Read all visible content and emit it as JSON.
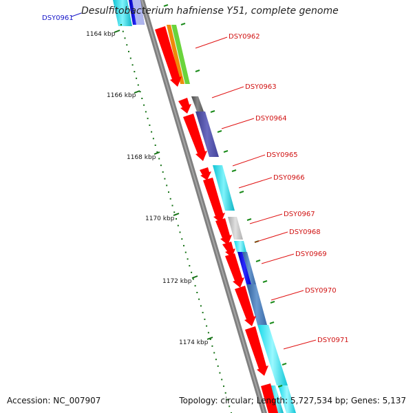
{
  "map": {
    "title": "Desulfitobacterium hafniense Y51, complete genome",
    "accession": "Accession: NC_007907",
    "topology_summary": "Topology: circular; Length: 5,727,534 bp; Genes: 5,137"
  },
  "ruler": {
    "labels": [
      "1164 kbp",
      "1166 kbp",
      "1168 kbp",
      "1170 kbp",
      "1172 kbp",
      "1174 kbp"
    ]
  },
  "gene_labels": [
    {
      "text": "DSY0961",
      "color": "#1515c8"
    },
    {
      "text": "DSY0962",
      "color": "#d01010"
    },
    {
      "text": "DSY0963",
      "color": "#d01010"
    },
    {
      "text": "DSY0964",
      "color": "#d01010"
    },
    {
      "text": "DSY0965",
      "color": "#d01010"
    },
    {
      "text": "DSY0966",
      "color": "#d01010"
    },
    {
      "text": "DSY0967",
      "color": "#d01010"
    },
    {
      "text": "DSY0968",
      "color": "#d01010"
    },
    {
      "text": "DSY0969",
      "color": "#d01010"
    },
    {
      "text": "DSY0970",
      "color": "#d01010"
    },
    {
      "text": "DSY0971",
      "color": "#d01010"
    }
  ],
  "colors": {
    "backbone": "#808080",
    "gene_arrow": "#ff0000",
    "tick": "#1a8a1a",
    "label_line": "#e01010",
    "ruler_tick": "#127012"
  }
}
